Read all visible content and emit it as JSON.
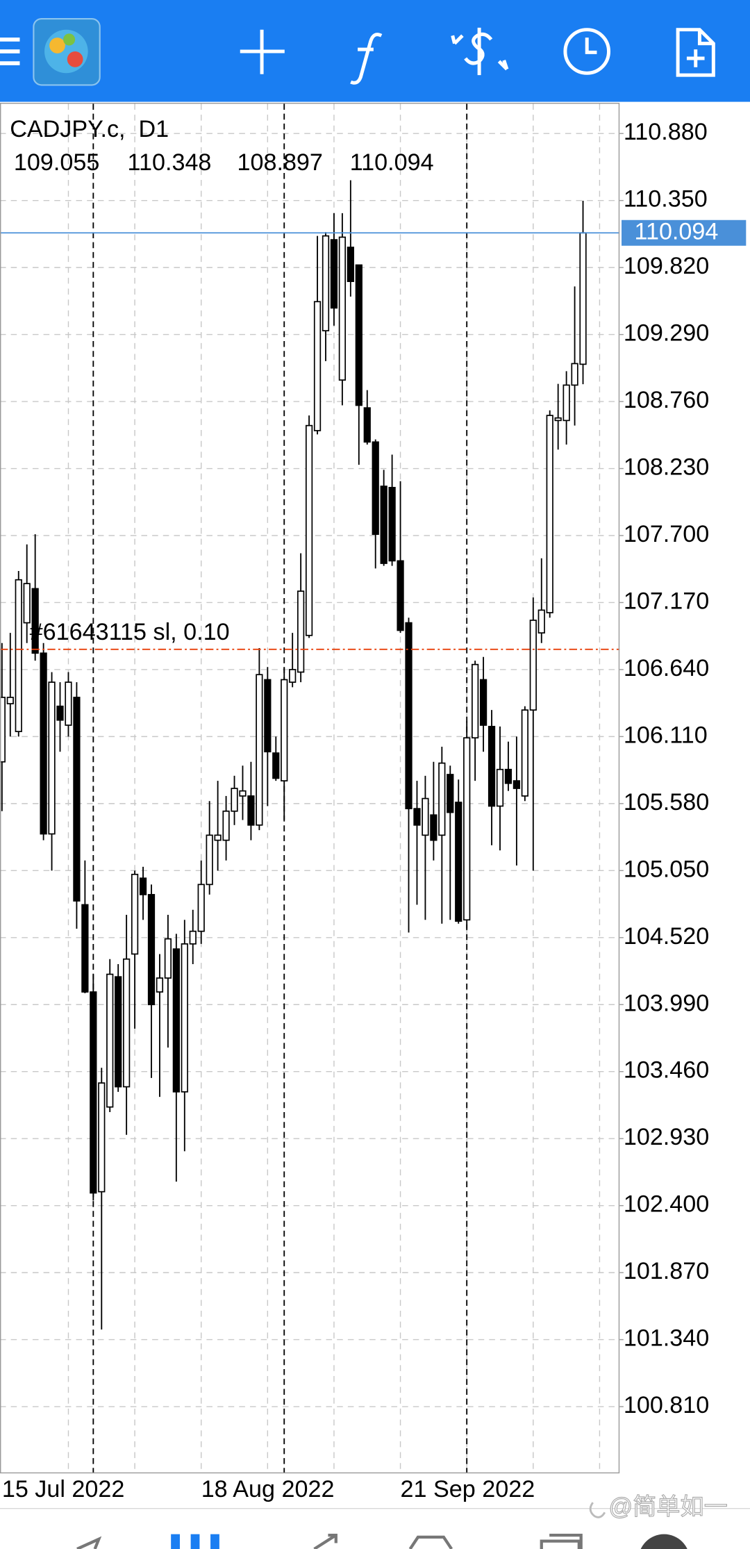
{
  "chart_data": {
    "type": "candlestick",
    "title": "CADJPY.c,  D1",
    "categories": [
      "15 Jul 2022",
      null,
      null,
      null,
      null,
      null,
      null,
      null,
      null,
      null,
      null,
      null,
      null,
      null,
      null,
      null,
      null,
      null,
      null,
      null,
      null,
      null,
      null,
      null,
      "18 Aug 2022",
      null,
      null,
      null,
      null,
      null,
      null,
      null,
      null,
      null,
      null,
      null,
      null,
      null,
      null,
      null,
      null,
      null,
      null,
      null,
      null,
      null,
      null,
      null,
      "21 Sep 2022",
      null,
      null,
      null,
      null,
      null,
      null,
      null,
      null,
      null,
      null,
      null,
      null,
      null,
      null,
      null,
      null,
      null,
      null,
      null,
      null,
      null,
      null
    ],
    "open": [
      105.91,
      106.37,
      106.15,
      107.01,
      107.28,
      106.77,
      105.34,
      106.35,
      106.2,
      106.42,
      104.78,
      104.09,
      102.51,
      103.18,
      104.21,
      103.34,
      104.39,
      104.99,
      104.86,
      104.09,
      104.2,
      104.43,
      103.3,
      104.47,
      104.57,
      104.94,
      105.29,
      105.29,
      105.52,
      105.64,
      105.64,
      105.41,
      106.56,
      105.98,
      105.76,
      106.54,
      106.62,
      106.91,
      108.53,
      109.32,
      110.04,
      108.93,
      109.98,
      109.84,
      108.71,
      108.44,
      108.09,
      108.08,
      107.5,
      107.01,
      105.54,
      105.33,
      105.49,
      105.33,
      105.81,
      105.59,
      104.66,
      106.1,
      106.56,
      106.19,
      105.56,
      105.85,
      105.76,
      105.64,
      106.32,
      106.93,
      107.09,
      108.61,
      108.61,
      108.89,
      109.055
    ],
    "high": [
      106.85,
      106.93,
      107.42,
      107.63,
      107.71,
      106.85,
      106.62,
      106.54,
      106.62,
      106.54,
      105.13,
      104.23,
      103.49,
      104.35,
      104.31,
      104.7,
      105.05,
      105.08,
      104.94,
      104.39,
      104.7,
      104.55,
      104.66,
      104.74,
      105.13,
      105.6,
      105.76,
      105.64,
      105.8,
      105.88,
      105.91,
      106.81,
      106.66,
      106.11,
      106.66,
      106.93,
      107.56,
      108.65,
      110.07,
      110.1,
      110.25,
      110.25,
      110.51,
      109.84,
      108.85,
      108.46,
      108.22,
      108.34,
      108.13,
      107.05,
      105.76,
      105.8,
      105.91,
      106.03,
      105.88,
      105.77,
      106.23,
      106.71,
      106.74,
      106.32,
      106.19,
      106.07,
      106.11,
      106.35,
      107.21,
      107.52,
      108.69,
      108.9,
      109.0,
      109.67,
      110.348
    ],
    "low": [
      105.52,
      106.11,
      106.11,
      106.85,
      106.71,
      105.29,
      105.05,
      105.99,
      106.11,
      104.59,
      104.08,
      102.44,
      101.42,
      103.14,
      103.3,
      102.96,
      103.8,
      104.66,
      103.41,
      103.26,
      103.65,
      102.59,
      102.83,
      104.31,
      104.47,
      104.86,
      105.05,
      105.13,
      105.41,
      105.45,
      105.29,
      105.37,
      105.56,
      105.76,
      105.45,
      106.5,
      106.54,
      106.89,
      108.5,
      109.08,
      109.36,
      108.73,
      109.59,
      108.26,
      108.42,
      107.44,
      107.46,
      107.46,
      106.93,
      104.56,
      104.78,
      104.66,
      105.13,
      104.63,
      104.66,
      104.63,
      104.59,
      105.76,
      105.99,
      105.25,
      105.21,
      105.68,
      105.09,
      105.6,
      105.05,
      106.85,
      107.05,
      108.38,
      108.42,
      108.57,
      108.897
    ],
    "close": [
      106.42,
      106.42,
      107.35,
      107.32,
      106.77,
      105.34,
      106.54,
      106.24,
      106.54,
      104.81,
      104.09,
      102.5,
      103.37,
      104.23,
      103.34,
      104.35,
      105.02,
      104.86,
      103.99,
      104.2,
      104.51,
      103.3,
      104.47,
      104.57,
      104.94,
      105.33,
      105.33,
      105.52,
      105.7,
      105.68,
      105.41,
      106.6,
      105.99,
      105.78,
      106.56,
      106.64,
      107.26,
      108.57,
      109.55,
      110.07,
      109.5,
      110.06,
      109.71,
      108.73,
      108.44,
      107.71,
      107.48,
      107.5,
      106.95,
      105.54,
      105.41,
      105.62,
      105.29,
      105.9,
      105.51,
      104.65,
      106.1,
      106.68,
      106.2,
      105.56,
      105.85,
      105.74,
      105.7,
      106.32,
      107.03,
      107.11,
      108.65,
      108.63,
      108.89,
      109.06,
      110.094
    ],
    "up_color": "#ffffff",
    "down_color": "#000000",
    "price_line_color": "#4a90d9",
    "order_line": {
      "label": "#61643115 sl, 0.10",
      "value": 106.8,
      "color": "#e8400c"
    },
    "ylim": [
      100.286,
      111.115
    ],
    "yticks": [
      {
        "value": 100.81,
        "label": "100.810"
      },
      {
        "value": 101.34,
        "label": "101.340"
      },
      {
        "value": 101.87,
        "label": "101.870"
      },
      {
        "value": 102.4,
        "label": "102.400"
      },
      {
        "value": 102.93,
        "label": "102.930"
      },
      {
        "value": 103.46,
        "label": "103.460"
      },
      {
        "value": 103.99,
        "label": "103.990"
      },
      {
        "value": 104.52,
        "label": "104.520"
      },
      {
        "value": 105.05,
        "label": "105.050"
      },
      {
        "value": 105.58,
        "label": "105.580"
      },
      {
        "value": 106.11,
        "label": "106.110"
      },
      {
        "value": 106.64,
        "label": "106.640"
      },
      {
        "value": 107.17,
        "label": "107.170"
      },
      {
        "value": 107.7,
        "label": "107.700"
      },
      {
        "value": 108.23,
        "label": "108.230"
      },
      {
        "value": 108.76,
        "label": "108.760"
      },
      {
        "value": 109.29,
        "label": "109.290"
      },
      {
        "value": 109.82,
        "label": "109.820"
      },
      {
        "value": 110.35,
        "label": "110.350"
      },
      {
        "value": 110.88,
        "label": "110.880"
      }
    ],
    "grid": true
  },
  "watermark": "@简单如一"
}
